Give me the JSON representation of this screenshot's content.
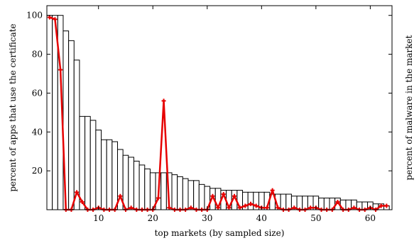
{
  "chart_data": {
    "type": "bar",
    "title": "",
    "xlabel": "top markets (by sampled size)",
    "ylabel": "percent of apps that use the certificate",
    "y2label": "percent of malware in the market",
    "xlim": [
      0.5,
      64
    ],
    "ylim": [
      0,
      105
    ],
    "grid": false,
    "legend": "none",
    "x_ticks": [
      10,
      20,
      30,
      40,
      50,
      60
    ],
    "y_ticks": [
      20,
      40,
      60,
      80,
      100
    ],
    "colors": {
      "bars_fill": "#ffffff",
      "bars_stroke": "#000000",
      "line": "#e60000"
    },
    "series": [
      {
        "type": "bar",
        "x": [
          1,
          2,
          3,
          4,
          5,
          6,
          7,
          8,
          9,
          10,
          11,
          12,
          13,
          14,
          15,
          16,
          17,
          18,
          19,
          20,
          21,
          22,
          23,
          24,
          25,
          26,
          27,
          28,
          29,
          30,
          31,
          32,
          33,
          34,
          35,
          36,
          37,
          38,
          39,
          40,
          41,
          42,
          43,
          44,
          45,
          46,
          47,
          48,
          49,
          50,
          51,
          52,
          53,
          54,
          55,
          56,
          57,
          58,
          59,
          60,
          61,
          62,
          63
        ],
        "values": [
          100,
          100,
          100,
          92,
          87,
          77,
          48,
          48,
          46,
          41,
          36,
          36,
          35,
          31,
          28,
          27,
          25,
          23,
          21,
          19,
          19,
          19,
          19,
          18,
          17,
          16,
          15,
          15,
          13,
          12,
          11,
          11,
          10,
          10,
          10,
          10,
          9,
          9,
          9,
          9,
          9,
          8,
          8,
          8,
          8,
          7,
          7,
          7,
          7,
          7,
          6,
          6,
          6,
          6,
          5,
          5,
          5,
          4,
          4,
          4,
          3,
          3,
          2
        ]
      },
      {
        "type": "line",
        "x": [
          1,
          2,
          3,
          4,
          5,
          6,
          7,
          8,
          9,
          10,
          11,
          12,
          13,
          14,
          15,
          16,
          17,
          18,
          19,
          20,
          21,
          22,
          23,
          24,
          25,
          26,
          27,
          28,
          29,
          30,
          31,
          32,
          33,
          34,
          35,
          36,
          37,
          38,
          39,
          40,
          41,
          42,
          43,
          44,
          45,
          46,
          47,
          48,
          49,
          50,
          51,
          52,
          53,
          54,
          55,
          56,
          57,
          58,
          59,
          60,
          61,
          62,
          63
        ],
        "values": [
          99,
          98,
          72,
          0,
          0,
          9,
          4,
          0,
          0,
          1,
          0,
          0,
          0,
          7,
          0,
          1,
          0,
          0,
          0,
          0,
          6,
          56,
          1,
          0,
          0,
          0,
          1,
          0,
          0,
          0,
          7,
          1,
          8,
          1,
          7,
          1,
          2,
          3,
          2,
          1,
          1,
          10,
          1,
          0,
          0,
          1,
          0,
          0,
          1,
          1,
          0,
          0,
          0,
          4,
          0,
          0,
          1,
          0,
          0,
          1,
          0,
          2,
          2
        ]
      }
    ]
  }
}
